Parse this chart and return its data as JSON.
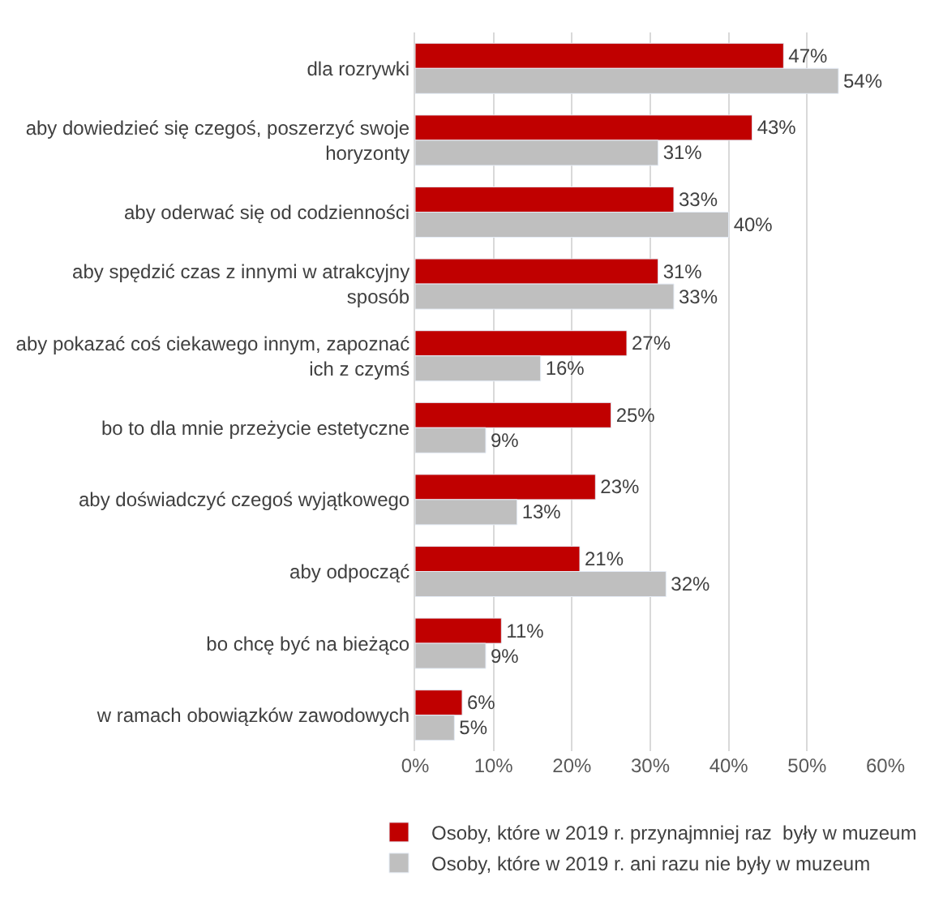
{
  "chart_data": {
    "type": "bar",
    "orientation": "horizontal",
    "categories": [
      "dla rozrywki",
      "aby dowiedzieć się czegoś, poszerzyć swoje\nhoryzonty",
      "aby oderwać się od codzienności",
      "aby spędzić czas z innymi w atrakcyjny\nsposób",
      "aby pokazać coś ciekawego innym, zapoznać\nich z czymś",
      "bo to dla mnie przeżycie estetyczne",
      "aby doświadczyć czegoś wyjątkowego",
      "aby odpocząć",
      "bo chcę być na bieżąco",
      "w ramach obowiązków zawodowych"
    ],
    "series": [
      {
        "name": "Osoby, które w 2019 r. przynajmniej raz  były w muzeum",
        "color": "#c00000",
        "values": [
          47,
          43,
          33,
          31,
          27,
          25,
          23,
          21,
          11,
          6
        ],
        "value_labels": [
          "47%",
          "43%",
          "33%",
          "31%",
          "27%",
          "25%",
          "23%",
          "21%",
          "11%",
          "6%"
        ]
      },
      {
        "name": "Osoby, które w 2019 r. ani razu nie były w muzeum",
        "color": "#bfbfbf",
        "values": [
          54,
          31,
          40,
          33,
          16,
          9,
          13,
          32,
          9,
          5
        ],
        "value_labels": [
          "54%",
          "31%",
          "40%",
          "33%",
          "16%",
          "9%",
          "13%",
          "32%",
          "9%",
          "5%"
        ]
      }
    ],
    "xlim": [
      0,
      60
    ],
    "xticks": [
      {
        "value": 0,
        "label": "0%"
      },
      {
        "value": 10,
        "label": "10%"
      },
      {
        "value": 20,
        "label": "20%"
      },
      {
        "value": 30,
        "label": "30%"
      },
      {
        "value": 40,
        "label": "40%"
      },
      {
        "value": 50,
        "label": "50%"
      },
      {
        "value": 60,
        "label": "60%"
      }
    ],
    "grid": "x",
    "legend": "bottom"
  }
}
